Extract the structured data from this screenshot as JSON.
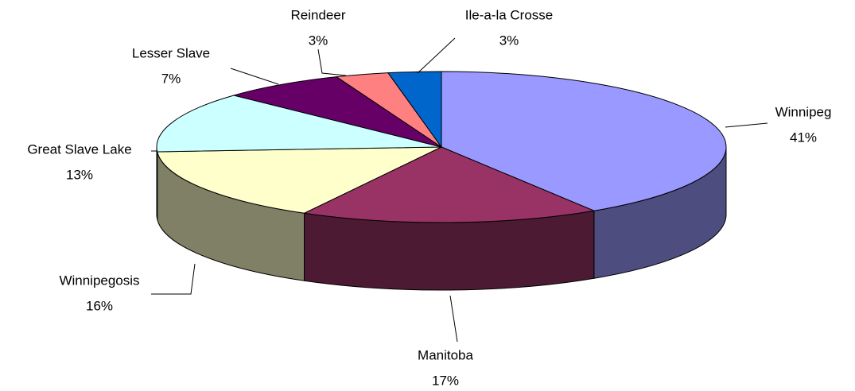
{
  "chart_data": {
    "type": "pie3d",
    "categories": [
      "Winnipeg",
      "Manitoba",
      "Winnipegosis",
      "Great Slave Lake",
      "Lesser Slave",
      "Reindeer",
      "Ile-a-la Crosse"
    ],
    "values": [
      41,
      17,
      16,
      13,
      7,
      3,
      3
    ],
    "value_labels": [
      "41%",
      "17%",
      "16%",
      "13%",
      "7%",
      "3%",
      "3%"
    ],
    "colors": [
      "#9999ff",
      "#993366",
      "#ffffcc",
      "#ccffff",
      "#660066",
      "#ff8080",
      "#0066cc"
    ]
  }
}
